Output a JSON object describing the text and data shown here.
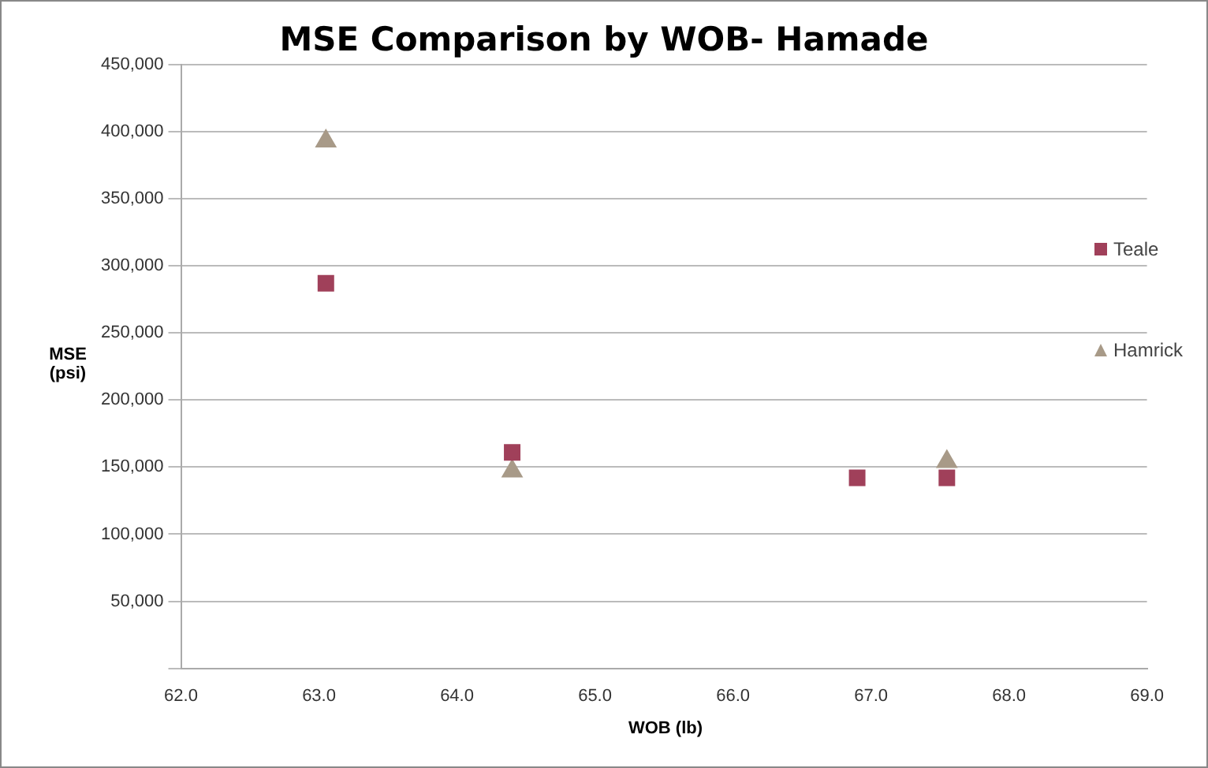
{
  "chart_data": {
    "type": "scatter",
    "title": "MSE Comparison by WOB- Hamade",
    "xlabel": "WOB (lb)",
    "ylabel": "MSE (psi)",
    "xlim": [
      62,
      69
    ],
    "xticks": [
      {
        "value": 62,
        "label": "62.0"
      },
      {
        "value": 63,
        "label": "63.0"
      },
      {
        "value": 64,
        "label": "64.0"
      },
      {
        "value": 65,
        "label": "65.0"
      },
      {
        "value": 66,
        "label": "66.0"
      },
      {
        "value": 67,
        "label": "67.0"
      },
      {
        "value": 68,
        "label": "68.0"
      },
      {
        "value": 69,
        "label": "69.0"
      }
    ],
    "ylim": [
      0,
      450000
    ],
    "yticks": [
      {
        "value": 0,
        "label": null
      },
      {
        "value": 50000,
        "label": "50,000"
      },
      {
        "value": 100000,
        "label": "100,000"
      },
      {
        "value": 150000,
        "label": "150,000"
      },
      {
        "value": 200000,
        "label": "200,000"
      },
      {
        "value": 250000,
        "label": "250,000"
      },
      {
        "value": 300000,
        "label": "300,000"
      },
      {
        "value": 350000,
        "label": "350,000"
      },
      {
        "value": 400000,
        "label": "400,000"
      },
      {
        "value": 450000,
        "label": "450,000"
      }
    ],
    "grid": "y",
    "legend": "right",
    "series": [
      {
        "name": "Teale",
        "color": "#a0405a",
        "marker": "square",
        "x": [
          63.05,
          64.4,
          66.9,
          67.55
        ],
        "values": [
          287000,
          161000,
          142000,
          142000
        ]
      },
      {
        "name": "Hamrick",
        "color": "#a89a88",
        "marker": "triangle",
        "x": [
          63.05,
          64.4,
          66.9,
          67.55
        ],
        "values": [
          393000,
          147000,
          null,
          154000
        ]
      }
    ]
  }
}
